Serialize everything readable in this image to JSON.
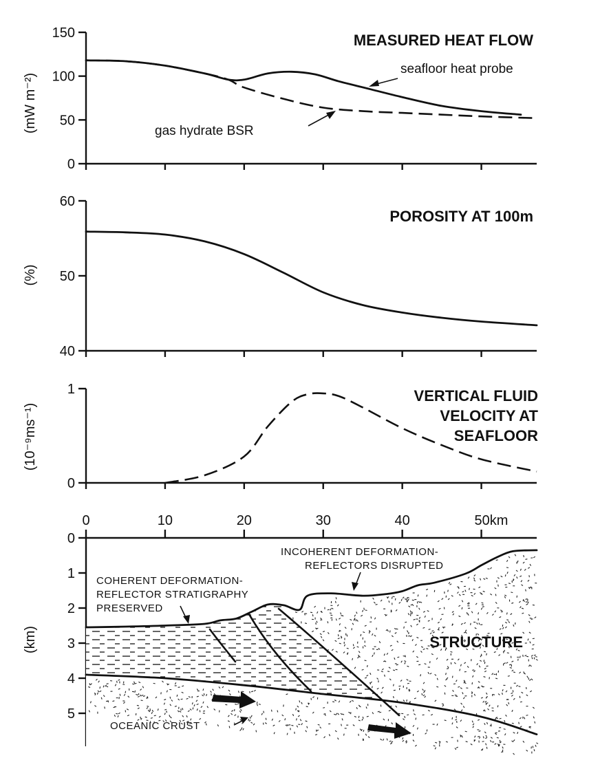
{
  "chart_data": [
    {
      "type": "line",
      "title": "MEASURED HEAT FLOW",
      "ylabel": "(mW m⁻²)",
      "xlim": [
        0,
        57
      ],
      "ylim": [
        0,
        150
      ],
      "yticks": [
        0,
        50,
        100,
        150
      ],
      "grid": false,
      "series": [
        {
          "name": "seafloor heat probe",
          "style": "solid",
          "x": [
            0,
            5,
            10,
            15,
            18,
            20,
            23,
            26,
            29,
            32,
            36,
            40,
            45,
            50,
            55
          ],
          "y": [
            118,
            117,
            112,
            103,
            96,
            96,
            103,
            105,
            102,
            94,
            85,
            76,
            66,
            60,
            56
          ]
        },
        {
          "name": "gas hydrate BSR",
          "style": "dashed",
          "x": [
            0,
            5,
            10,
            15,
            18,
            20,
            25,
            30,
            35,
            40,
            45,
            50,
            57
          ],
          "y": [
            118,
            117,
            112,
            103,
            96,
            87,
            74,
            64,
            60,
            58,
            56,
            54,
            52
          ]
        }
      ]
    },
    {
      "type": "line",
      "title": "POROSITY AT 100m",
      "ylabel": "(%)",
      "xlim": [
        0,
        57
      ],
      "ylim": [
        40,
        60
      ],
      "yticks": [
        40,
        50,
        60
      ],
      "grid": false,
      "series": [
        {
          "style": "solid",
          "x": [
            0,
            5,
            10,
            15,
            20,
            25,
            30,
            35,
            40,
            45,
            50,
            57
          ],
          "y": [
            55.9,
            55.8,
            55.5,
            54.6,
            52.9,
            50.4,
            47.8,
            46.1,
            45.1,
            44.4,
            43.9,
            43.4
          ]
        }
      ]
    },
    {
      "type": "line",
      "title": "VERTICAL FLUID VELOCITY AT SEAFLOOR",
      "title_lines": [
        "VERTICAL FLUID",
        "VELOCITY AT",
        "SEAFLOOR"
      ],
      "ylabel": "(10⁻⁹ms⁻¹)",
      "xlim": [
        0,
        57
      ],
      "ylim": [
        0,
        1
      ],
      "yticks": [
        0,
        1
      ],
      "grid": false,
      "series": [
        {
          "style": "dashed",
          "x": [
            10,
            15,
            20,
            23,
            26,
            28,
            30,
            32,
            35,
            40,
            45,
            50,
            57
          ],
          "y": [
            0.0,
            0.08,
            0.28,
            0.6,
            0.86,
            0.94,
            0.95,
            0.92,
            0.8,
            0.58,
            0.4,
            0.25,
            0.12
          ]
        }
      ]
    },
    {
      "type": "diagram",
      "title": "STRUCTURE",
      "ylabel": "(km)",
      "xticks": [
        0,
        10,
        20,
        30,
        40,
        "50km"
      ],
      "xtick_values": [
        0,
        10,
        20,
        30,
        40,
        50
      ],
      "xlim": [
        0,
        57
      ],
      "ylim": [
        6,
        0
      ],
      "yticks": [
        0,
        1,
        2,
        3,
        4,
        5
      ],
      "seafloor_depth": {
        "x": [
          0,
          5,
          10,
          15,
          17,
          19,
          21,
          23,
          25,
          27,
          28,
          31,
          35,
          38,
          40,
          42,
          44,
          48,
          50,
          52,
          54,
          57
        ],
        "y": [
          2.55,
          2.53,
          2.5,
          2.45,
          2.35,
          2.3,
          2.1,
          1.9,
          1.92,
          2.05,
          1.65,
          1.58,
          1.65,
          1.6,
          1.52,
          1.35,
          1.28,
          1.02,
          0.78,
          0.55,
          0.38,
          0.35
        ]
      },
      "decollement_depth": {
        "x": [
          0,
          10,
          20,
          30,
          40,
          50,
          57
        ],
        "y": [
          3.9,
          4.0,
          4.2,
          4.45,
          4.7,
          5.1,
          5.6
        ]
      },
      "annotations": {
        "coherent": [
          "COHERENT DEFORMATION-",
          "REFLECTOR STRATIGRAPHY",
          "PRESERVED"
        ],
        "incoherent": [
          "INCOHERENT DEFORMATION-",
          "REFLECTORS DISRUPTED"
        ],
        "crust": "OCEANIC CRUST"
      }
    }
  ]
}
